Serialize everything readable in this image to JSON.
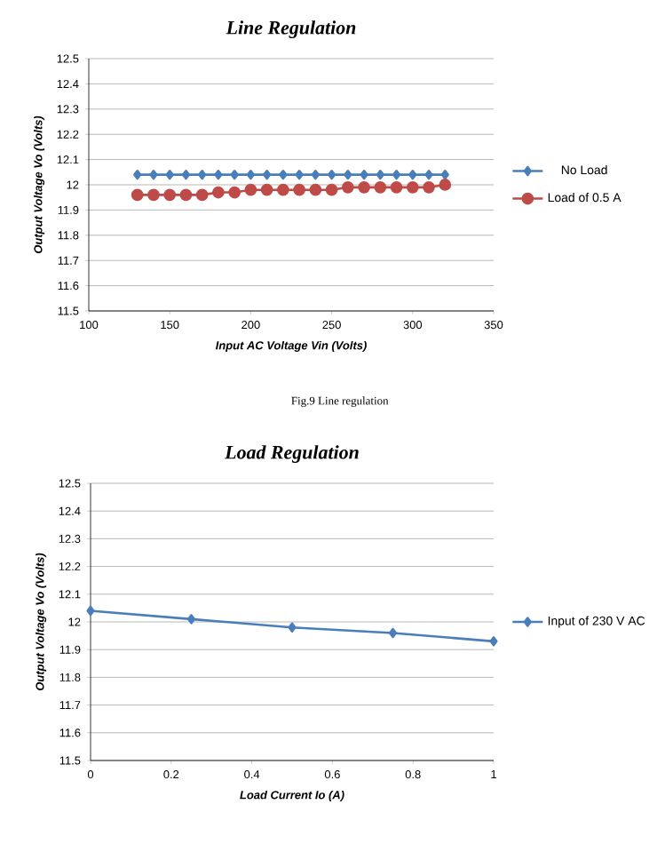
{
  "chart_data": [
    {
      "type": "line",
      "title": "Line Regulation",
      "xlabel": "Input AC Voltage Vin (Volts)",
      "ylabel": "Output Voltage Vo (Volts)",
      "x": [
        130,
        140,
        150,
        160,
        170,
        180,
        190,
        200,
        210,
        220,
        230,
        240,
        250,
        260,
        270,
        280,
        290,
        300,
        310,
        320
      ],
      "series": [
        {
          "name": "No Load",
          "color": "#4a7ebb",
          "marker": "diamond",
          "values": [
            12.04,
            12.04,
            12.04,
            12.04,
            12.04,
            12.04,
            12.04,
            12.04,
            12.04,
            12.04,
            12.04,
            12.04,
            12.04,
            12.04,
            12.04,
            12.04,
            12.04,
            12.04,
            12.04,
            12.04
          ]
        },
        {
          "name": "Load of 0.5 A",
          "color": "#be4b48",
          "marker": "circle",
          "values": [
            11.96,
            11.96,
            11.96,
            11.96,
            11.96,
            11.97,
            11.97,
            11.98,
            11.98,
            11.98,
            11.98,
            11.98,
            11.98,
            11.99,
            11.99,
            11.99,
            11.99,
            11.99,
            11.99,
            12.0
          ]
        }
      ],
      "xlim": [
        100,
        350
      ],
      "xticks": [
        100,
        150,
        200,
        250,
        300,
        350
      ],
      "ylim": [
        11.5,
        12.5
      ],
      "yticks": [
        11.5,
        11.6,
        11.7,
        11.8,
        11.9,
        12,
        12.1,
        12.2,
        12.3,
        12.4,
        12.5
      ],
      "grid": "y",
      "legend": "right",
      "annotations": [
        "Fig.9 Line regulation"
      ]
    },
    {
      "type": "line",
      "title": "Load Regulation",
      "xlabel": "Load Current Io (A)",
      "ylabel": "Output Voltage Vo (Volts)",
      "x": [
        0,
        0.25,
        0.5,
        0.75,
        1
      ],
      "series": [
        {
          "name": "Input of 230 V AC",
          "color": "#4a7ebb",
          "marker": "diamond",
          "values": [
            12.04,
            12.01,
            11.98,
            11.96,
            11.93
          ]
        }
      ],
      "xlim": [
        0,
        1
      ],
      "xticks": [
        0,
        0.2,
        0.4,
        0.6,
        0.8,
        1
      ],
      "ylim": [
        11.5,
        12.5
      ],
      "yticks": [
        11.5,
        11.6,
        11.7,
        11.8,
        11.9,
        12,
        12.1,
        12.2,
        12.3,
        12.4,
        12.5
      ],
      "grid": "y",
      "legend": "right"
    }
  ]
}
